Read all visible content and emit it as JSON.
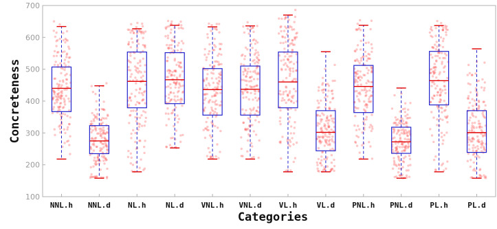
{
  "chart_data": {
    "type": "boxplot",
    "xlabel": "Categories",
    "ylabel": "Concreteness",
    "ylim": [
      100,
      700
    ],
    "yticks": [
      100,
      200,
      300,
      400,
      500,
      600,
      700
    ],
    "grid": false,
    "colors": {
      "box": "#2222cc",
      "median": "#e00000",
      "points": "#ff3b3b"
    },
    "categories": [
      "NNL.h",
      "NNL.d",
      "NL.h",
      "NL.d",
      "VNL.h",
      "VNL.d",
      "VL.h",
      "VL.d",
      "PNL.h",
      "PNL.d",
      "PL.h",
      "PL.d"
    ],
    "boxes": [
      {
        "category": "NNL.h",
        "whisker_low": 218,
        "q1": 367,
        "median": 440,
        "q3": 507,
        "whisker_high": 634
      },
      {
        "category": "NNL.d",
        "whisker_low": 158,
        "q1": 235,
        "median": 275,
        "q3": 323,
        "whisker_high": 448
      },
      {
        "category": "NL.h",
        "whisker_low": 178,
        "q1": 379,
        "median": 462,
        "q3": 554,
        "whisker_high": 627
      },
      {
        "category": "NL.d",
        "whisker_low": 253,
        "q1": 392,
        "median": 467,
        "q3": 552,
        "whisker_high": 638
      },
      {
        "category": "VNL.h",
        "whisker_low": 218,
        "q1": 356,
        "median": 436,
        "q3": 502,
        "whisker_high": 633
      },
      {
        "category": "VNL.d",
        "whisker_low": 218,
        "q1": 356,
        "median": 437,
        "q3": 510,
        "whisker_high": 636
      },
      {
        "category": "VL.h",
        "whisker_low": 178,
        "q1": 379,
        "median": 460,
        "q3": 554,
        "whisker_high": 670
      },
      {
        "category": "VL.d",
        "whisker_low": 178,
        "q1": 244,
        "median": 302,
        "q3": 370,
        "whisker_high": 555
      },
      {
        "category": "PNL.h",
        "whisker_low": 218,
        "q1": 364,
        "median": 446,
        "q3": 512,
        "whisker_high": 638
      },
      {
        "category": "PNL.d",
        "whisker_low": 158,
        "q1": 236,
        "median": 272,
        "q3": 318,
        "whisker_high": 441
      },
      {
        "category": "PL.h",
        "whisker_low": 178,
        "q1": 388,
        "median": 464,
        "q3": 556,
        "whisker_high": 637
      },
      {
        "category": "PL.d",
        "whisker_low": 158,
        "q1": 239,
        "median": 301,
        "q3": 370,
        "whisker_high": 564
      }
    ]
  }
}
